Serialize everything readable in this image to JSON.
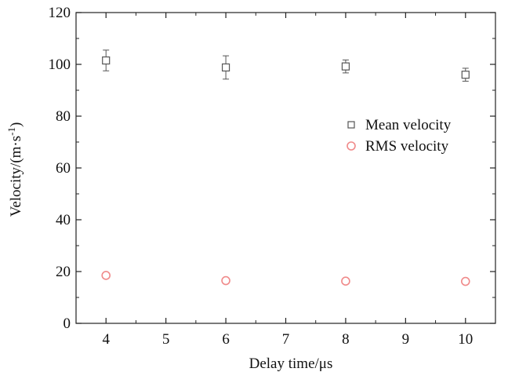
{
  "chart_data": {
    "type": "scatter",
    "x": [
      4,
      6,
      8,
      10
    ],
    "xlabel": "Delay time/μs",
    "ylabel_base": "Velocity/(m·s",
    "ylabel_exp": "-1",
    "ylabel_close": ")",
    "xlim": [
      3.5,
      10.5
    ],
    "ylim": [
      0,
      120
    ],
    "x_ticks": [
      "4",
      "5",
      "6",
      "7",
      "8",
      "9",
      "10"
    ],
    "y_ticks": [
      "0",
      "20",
      "40",
      "60",
      "80",
      "100",
      "120"
    ],
    "grid": false,
    "legend_position": "right",
    "series": [
      {
        "name": "Mean velocity",
        "marker": "square",
        "color": "#555555",
        "values": [
          101.5,
          98.8,
          99.2,
          96.0
        ],
        "error": [
          4.0,
          4.5,
          2.5,
          2.5
        ]
      },
      {
        "name": "RMS velocity",
        "marker": "circle",
        "color": "#f08a8a",
        "values": [
          18.5,
          16.5,
          16.3,
          16.2
        ]
      }
    ]
  }
}
